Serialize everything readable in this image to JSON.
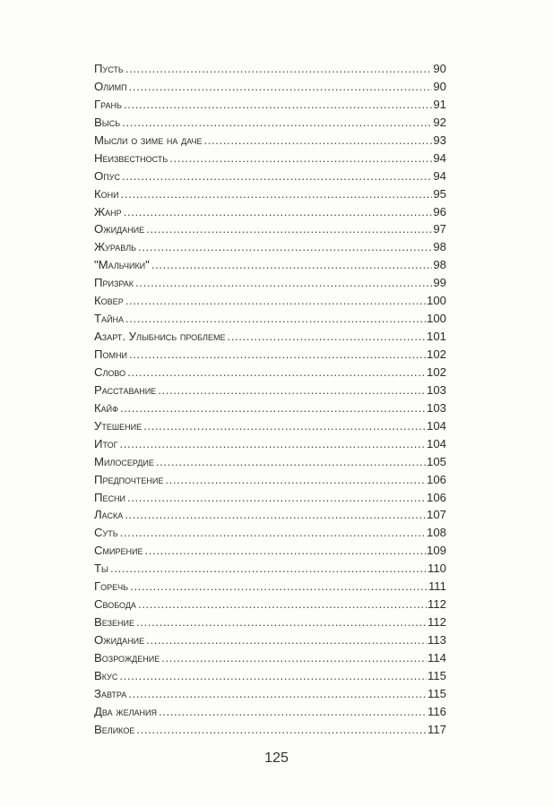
{
  "toc": [
    {
      "title": "Пусть",
      "page": "90"
    },
    {
      "title": "Олимп",
      "page": "90"
    },
    {
      "title": "Грань",
      "page": "91"
    },
    {
      "title": "Высь",
      "page": "92"
    },
    {
      "title": "Мысли о зиме на даче",
      "page": "93"
    },
    {
      "title": "Неизвестность",
      "page": "94"
    },
    {
      "title": "Опус",
      "page": "94"
    },
    {
      "title": "Кони",
      "page": "95"
    },
    {
      "title": "Жанр",
      "page": "96"
    },
    {
      "title": "Ожидание",
      "page": "97"
    },
    {
      "title": "Журавль",
      "page": "98"
    },
    {
      "title": "\"Мальчики\"",
      "page": "98"
    },
    {
      "title": "Призрак",
      "page": "99"
    },
    {
      "title": "Ковер",
      "page": "100"
    },
    {
      "title": "Тайна",
      "page": "100"
    },
    {
      "title": "Азарт. Улыбнись проблеме",
      "page": "101"
    },
    {
      "title": "Помни",
      "page": "102"
    },
    {
      "title": "Слово",
      "page": "102"
    },
    {
      "title": "Расставание",
      "page": "103"
    },
    {
      "title": "Кайф",
      "page": "103"
    },
    {
      "title": "Утешение",
      "page": "104"
    },
    {
      "title": "Итог",
      "page": "104"
    },
    {
      "title": "Милосердие",
      "page": "105"
    },
    {
      "title": "Предпочтение",
      "page": "106"
    },
    {
      "title": "Песни",
      "page": "106"
    },
    {
      "title": "Ласка",
      "page": "107"
    },
    {
      "title": "Суть",
      "page": "108"
    },
    {
      "title": "Смирение",
      "page": "109"
    },
    {
      "title": "Ты",
      "page": "110"
    },
    {
      "title": "Горечь",
      "page": "111"
    },
    {
      "title": "Свобода",
      "page": "112"
    },
    {
      "title": "Везение",
      "page": "112"
    },
    {
      "title": "Ожидание",
      "page": "113"
    },
    {
      "title": "Возрождение",
      "page": "114"
    },
    {
      "title": "Вкус",
      "page": "115"
    },
    {
      "title": "Завтра",
      "page": "115"
    },
    {
      "title": "Два желания",
      "page": "116"
    },
    {
      "title": "Великое",
      "page": "117"
    }
  ],
  "folio": "125"
}
